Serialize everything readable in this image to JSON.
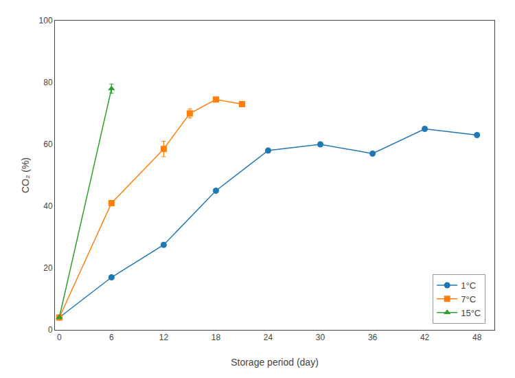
{
  "chart_data": {
    "type": "line",
    "xlabel": "Storage period (day)",
    "ylabel": "CO₂ (%)",
    "xlim": [
      -0.5,
      50
    ],
    "ylim": [
      0,
      100
    ],
    "xticks": [
      0,
      6,
      12,
      18,
      24,
      30,
      36,
      42,
      48
    ],
    "yticks": [
      0,
      20,
      40,
      60,
      80,
      100
    ],
    "grid": false,
    "legend": "lower right",
    "series": [
      {
        "name": "1°C",
        "x": [
          0,
          6,
          12,
          18,
          24,
          30,
          36,
          42,
          48
        ],
        "values": [
          4,
          17,
          27.5,
          45,
          58,
          60,
          57,
          65,
          63
        ],
        "yerr": [
          0,
          0,
          0,
          0,
          0,
          0,
          0,
          0,
          0
        ],
        "marker": "circle",
        "line_style": "solid"
      },
      {
        "name": "7°C",
        "x": [
          0,
          6,
          12,
          15,
          18,
          21
        ],
        "values": [
          4,
          41,
          58.5,
          70,
          74.5,
          73
        ],
        "yerr": [
          0,
          0,
          2.5,
          1.5,
          0,
          0
        ],
        "marker": "square",
        "line_style": "solid"
      },
      {
        "name": "15°C",
        "x": [
          0,
          6
        ],
        "values": [
          4,
          78
        ],
        "yerr": [
          0,
          1.5
        ],
        "marker": "triangle",
        "line_style": "solid"
      }
    ]
  }
}
